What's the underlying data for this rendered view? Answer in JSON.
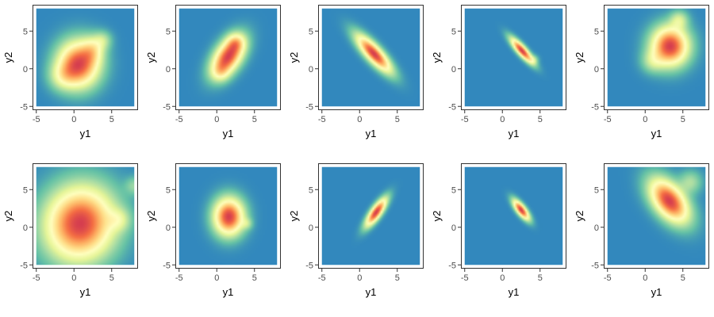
{
  "chart_data": [
    {
      "type": "heatmap",
      "panel": 1,
      "xlabel": "y1",
      "ylabel": "y2",
      "xlim": [
        -5.5,
        8.5
      ],
      "ylim": [
        -5.5,
        8.5
      ],
      "x_ticks": [
        "-5",
        "0",
        "5"
      ],
      "y_ticks": [
        "-5",
        "0",
        "5"
      ],
      "heat_extent": [
        -5,
        8
      ],
      "density_blobs": [
        {
          "cx": 0.6,
          "cy": 0.6,
          "sx": 1.8,
          "sy": 2.0,
          "rho": 0.0,
          "w": 1.0
        },
        {
          "cx": 2.5,
          "cy": 2.5,
          "sx": 1.0,
          "sy": 1.2,
          "rho": 0.0,
          "w": 0.3
        },
        {
          "cx": -1.5,
          "cy": -1.0,
          "sx": 1.2,
          "sy": 1.2,
          "rho": 0.0,
          "w": 0.25
        },
        {
          "cx": 3.8,
          "cy": 3.8,
          "sx": 0.8,
          "sy": 0.8,
          "rho": 0.0,
          "w": 0.2
        }
      ]
    },
    {
      "type": "heatmap",
      "panel": 2,
      "xlabel": "y1",
      "ylabel": "y2",
      "xlim": [
        -5.5,
        8.5
      ],
      "ylim": [
        -5.5,
        8.5
      ],
      "x_ticks": [
        "-5",
        "0",
        "5"
      ],
      "y_ticks": [
        "-5",
        "0",
        "5"
      ],
      "heat_extent": [
        -5,
        8
      ],
      "density_blobs": [
        {
          "cx": 1.5,
          "cy": 1.6,
          "sx": 1.4,
          "sy": 1.7,
          "rho": 0.5,
          "w": 1.0
        },
        {
          "cx": 2.5,
          "cy": 3.5,
          "sx": 0.8,
          "sy": 0.8,
          "rho": 0.0,
          "w": 0.3
        },
        {
          "cx": 0.5,
          "cy": -0.5,
          "sx": 0.8,
          "sy": 0.8,
          "rho": 0.0,
          "w": 0.2
        }
      ]
    },
    {
      "type": "heatmap",
      "panel": 3,
      "xlabel": "y1",
      "ylabel": "y2",
      "xlim": [
        -5.5,
        8.5
      ],
      "ylim": [
        -5.5,
        8.5
      ],
      "x_ticks": [
        "-5",
        "0",
        "5"
      ],
      "y_ticks": [
        "-5",
        "0",
        "5"
      ],
      "heat_extent": [
        -5,
        8
      ],
      "density_blobs": [
        {
          "cx": 1.9,
          "cy": 2.0,
          "sx": 1.5,
          "sy": 1.6,
          "rho": -0.82,
          "w": 1.0
        }
      ]
    },
    {
      "type": "heatmap",
      "panel": 4,
      "xlabel": "y1",
      "ylabel": "y2",
      "xlim": [
        -5.5,
        8.5
      ],
      "ylim": [
        -5.5,
        8.5
      ],
      "x_ticks": [
        "-5",
        "0",
        "5"
      ],
      "y_ticks": [
        "-5",
        "0",
        "5"
      ],
      "heat_extent": [
        -5,
        8
      ],
      "density_blobs": [
        {
          "cx": 2.6,
          "cy": 2.4,
          "sx": 0.95,
          "sy": 1.05,
          "rho": -0.85,
          "w": 1.0
        },
        {
          "cx": 4.2,
          "cy": 1.2,
          "sx": 0.4,
          "sy": 0.4,
          "rho": 0.0,
          "w": 0.15
        }
      ]
    },
    {
      "type": "heatmap",
      "panel": 5,
      "xlabel": "y1",
      "ylabel": "y2",
      "xlim": [
        -5.5,
        8.5
      ],
      "ylim": [
        -5.5,
        8.5
      ],
      "x_ticks": [
        "-5",
        "0",
        "5"
      ],
      "y_ticks": [
        "-5",
        "0",
        "5"
      ],
      "heat_extent": [
        -5,
        8
      ],
      "density_blobs": [
        {
          "cx": 3.3,
          "cy": 3.0,
          "sx": 1.6,
          "sy": 1.7,
          "rho": 0.0,
          "w": 1.0
        },
        {
          "cx": 4.5,
          "cy": 6.5,
          "sx": 0.8,
          "sy": 0.8,
          "rho": 0.0,
          "w": 0.25
        },
        {
          "cx": 1.0,
          "cy": 1.0,
          "sx": 1.0,
          "sy": 1.0,
          "rho": 0.0,
          "w": 0.2
        }
      ]
    },
    {
      "type": "heatmap",
      "panel": 6,
      "xlabel": "y1",
      "ylabel": "y2",
      "xlim": [
        -5.5,
        8.5
      ],
      "ylim": [
        -5.5,
        8.5
      ],
      "x_ticks": [
        "-5",
        "0",
        "5"
      ],
      "y_ticks": [
        "-5",
        "0",
        "5"
      ],
      "heat_extent": [
        -5,
        8
      ],
      "density_blobs": [
        {
          "cx": 0.8,
          "cy": 0.5,
          "sx": 3.0,
          "sy": 3.2,
          "rho": 0.05,
          "w": 1.0
        },
        {
          "cx": 6.0,
          "cy": 1.0,
          "sx": 1.0,
          "sy": 1.0,
          "rho": 0.0,
          "w": 0.2
        },
        {
          "cx": 8.0,
          "cy": 5.5,
          "sx": 0.8,
          "sy": 0.8,
          "rho": 0.0,
          "w": 0.15
        }
      ]
    },
    {
      "type": "heatmap",
      "panel": 7,
      "xlabel": "y1",
      "ylabel": "y2",
      "xlim": [
        -5.5,
        8.5
      ],
      "ylim": [
        -5.5,
        8.5
      ],
      "x_ticks": [
        "-5",
        "0",
        "5"
      ],
      "y_ticks": [
        "-5",
        "0",
        "5"
      ],
      "heat_extent": [
        -5,
        8
      ],
      "density_blobs": [
        {
          "cx": 1.6,
          "cy": 1.4,
          "sx": 1.3,
          "sy": 1.6,
          "rho": 0.0,
          "w": 1.0
        },
        {
          "cx": 4.0,
          "cy": 0.5,
          "sx": 0.5,
          "sy": 0.5,
          "rho": 0.0,
          "w": 0.15
        }
      ]
    },
    {
      "type": "heatmap",
      "panel": 8,
      "xlabel": "y1",
      "ylabel": "y2",
      "xlim": [
        -5.5,
        8.5
      ],
      "ylim": [
        -5.5,
        8.5
      ],
      "x_ticks": [
        "-5",
        "0",
        "5"
      ],
      "y_ticks": [
        "-5",
        "0",
        "5"
      ],
      "heat_extent": [
        -5,
        8
      ],
      "density_blobs": [
        {
          "cx": 2.2,
          "cy": 2.0,
          "sx": 0.9,
          "sy": 1.2,
          "rho": 0.8,
          "w": 1.0
        }
      ]
    },
    {
      "type": "heatmap",
      "panel": 9,
      "xlabel": "y1",
      "ylabel": "y2",
      "xlim": [
        -5.5,
        8.5
      ],
      "ylim": [
        -5.5,
        8.5
      ],
      "x_ticks": [
        "-5",
        "0",
        "5"
      ],
      "y_ticks": [
        "-5",
        "0",
        "5"
      ],
      "heat_extent": [
        -5,
        8
      ],
      "density_blobs": [
        {
          "cx": 2.5,
          "cy": 2.3,
          "sx": 0.7,
          "sy": 0.85,
          "rho": -0.75,
          "w": 1.0
        }
      ]
    },
    {
      "type": "heatmap",
      "panel": 10,
      "xlabel": "y1",
      "ylabel": "y2",
      "xlim": [
        -5.5,
        8.5
      ],
      "ylim": [
        -5.5,
        8.5
      ],
      "x_ticks": [
        "-5",
        "0",
        "5"
      ],
      "y_ticks": [
        "-5",
        "0",
        "5"
      ],
      "heat_extent": [
        -5,
        8
      ],
      "density_blobs": [
        {
          "cx": 3.2,
          "cy": 3.5,
          "sx": 1.7,
          "sy": 1.9,
          "rho": -0.5,
          "w": 1.0
        },
        {
          "cx": 6.0,
          "cy": 6.0,
          "sx": 1.0,
          "sy": 1.0,
          "rho": 0.0,
          "w": 0.2
        }
      ]
    }
  ],
  "colors": {
    "background": "#3288bd",
    "ramp": [
      "#3288bd",
      "#66c2a5",
      "#abdda4",
      "#e6f598",
      "#ffffbf",
      "#fee08b",
      "#fdae61",
      "#f46d43",
      "#d53e4f"
    ],
    "panel_border": "#333333",
    "tick": "#333333"
  }
}
